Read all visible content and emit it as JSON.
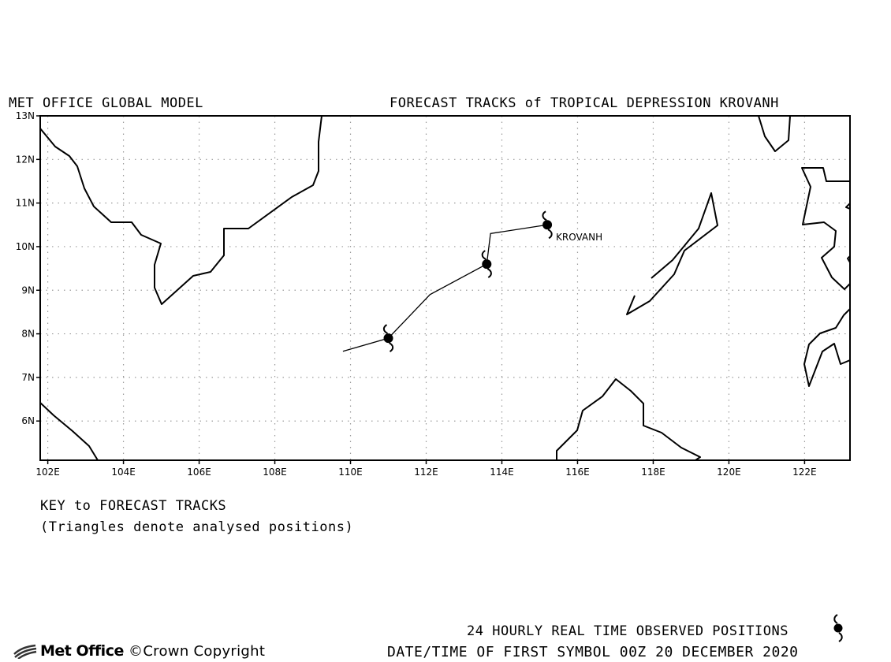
{
  "header": {
    "model": "MET OFFICE GLOBAL MODEL",
    "title": "FORECAST TRACKS of TROPICAL DEPRESSION KROVANH"
  },
  "map": {
    "lon_range": [
      101.8,
      123.2
    ],
    "lat_range": [
      5.1,
      13.0
    ],
    "lon_ticks": [
      "102E",
      "104E",
      "106E",
      "108E",
      "110E",
      "112E",
      "114E",
      "116E",
      "118E",
      "120E",
      "122E"
    ],
    "lat_ticks": [
      "6N",
      "7N",
      "8N",
      "9N",
      "10N",
      "11N",
      "12N",
      "13N"
    ],
    "grid": true,
    "coastline_color": "#000000",
    "track_color": "#000000",
    "storm_label": "KROVANH",
    "track": [
      [
        109.8,
        7.6
      ],
      [
        111.0,
        7.9
      ],
      [
        112.1,
        8.9
      ],
      [
        113.6,
        9.6
      ],
      [
        113.7,
        10.3
      ],
      [
        115.2,
        10.5
      ]
    ],
    "observed_positions": [
      [
        111.0,
        7.9
      ],
      [
        113.6,
        9.6
      ],
      [
        115.2,
        10.5
      ]
    ],
    "symbol_icon": "tropical-cyclone-icon"
  },
  "key": {
    "title": "KEY to FORECAST TRACKS",
    "note": "(Triangles denote analysed positions)"
  },
  "footer": {
    "observed_label": "24 HOURLY REAL TIME OBSERVED POSITIONS",
    "datetime_label": "DATE/TIME OF FIRST SYMBOL 00Z 20 DECEMBER 2020",
    "brand": "Met Office",
    "copyright": "Crown Copyright"
  }
}
